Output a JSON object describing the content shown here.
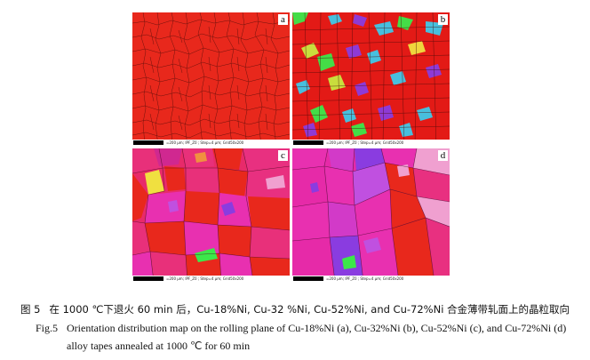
{
  "figure": {
    "panels": [
      {
        "letter": "a",
        "scale_text": "=200 µm; IPF_Z0 ; Step=4 µm; Grid50x200",
        "base_color": "#e8281c"
      },
      {
        "letter": "b",
        "scale_text": "=200 µm; IPF_Z0 ; Step=4 µm; Grid50x200",
        "base_color": "#e31a16"
      },
      {
        "letter": "c",
        "scale_text": "=200 µm; IPF_Z0 ; Step=4 µm; Grid50x200",
        "base_color": "#e82a6a"
      },
      {
        "letter": "d",
        "scale_text": "=200 µm; IPF_Z0 ; Step=4 µm; Grid50x200",
        "base_color": "#e62aa8"
      }
    ]
  },
  "caption": {
    "cn_label": "图 5",
    "cn_text": "在 1000 ℃下退火 60 min 后，Cu-18%Ni, Cu-32 %Ni, Cu-52%Ni, and Cu-72%Ni 合金薄带轧面上的晶粒取向",
    "en_label": "Fig.5",
    "en_text_1": "Orientation distribution map on the rolling plane of Cu-18%Ni (a), Cu-32%Ni (b), Cu-52%Ni (c), and Cu-72%Ni (d)",
    "en_text_2": "alloy tapes annealed at 1000  ℃  for 60 min"
  },
  "colors": {
    "grain_boundary": "#3a0a0a",
    "orientation_red": "#e8281c",
    "orientation_pink": "#e830b0",
    "orientation_purple": "#8a3ce0",
    "orientation_green": "#3ce84a",
    "orientation_cyan": "#40c8e8",
    "orientation_yellow": "#f0e040",
    "orientation_orange": "#f09040"
  }
}
